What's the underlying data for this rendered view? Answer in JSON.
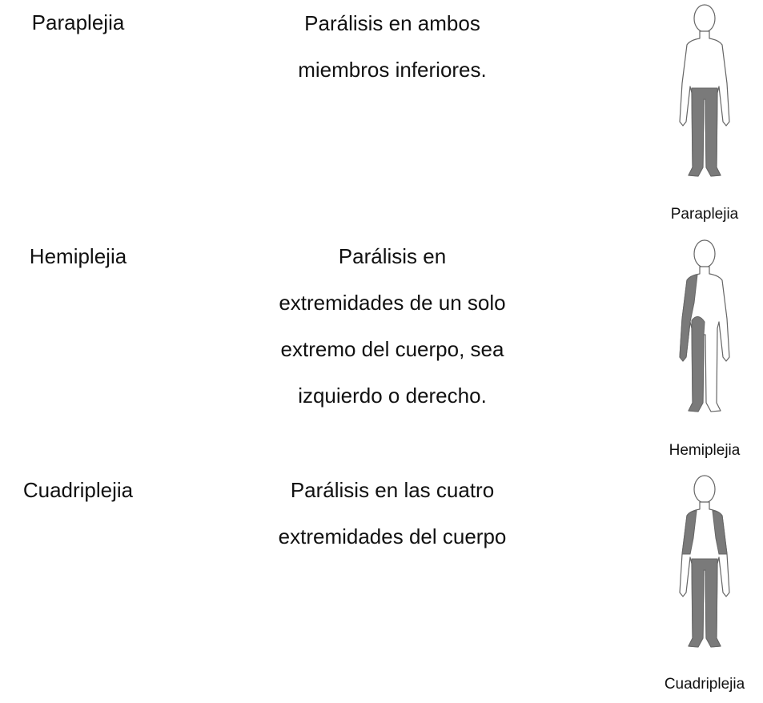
{
  "rows": [
    {
      "term": "Paraplejia",
      "description": [
        "Parálisis en ambos",
        "miembros inferiores."
      ],
      "caption": "Paraplejia"
    },
    {
      "term": "Hemiplejia",
      "description": [
        "Parálisis en",
        "extremidades de un solo",
        "extremo del cuerpo, sea",
        "izquierdo o derecho."
      ],
      "caption": "Hemiplejia"
    },
    {
      "term": "Cuadriplejia",
      "description": [
        "Parálisis en las cuatro",
        "extremidades del cuerpo"
      ],
      "caption": "Cuadriplejia"
    }
  ]
}
